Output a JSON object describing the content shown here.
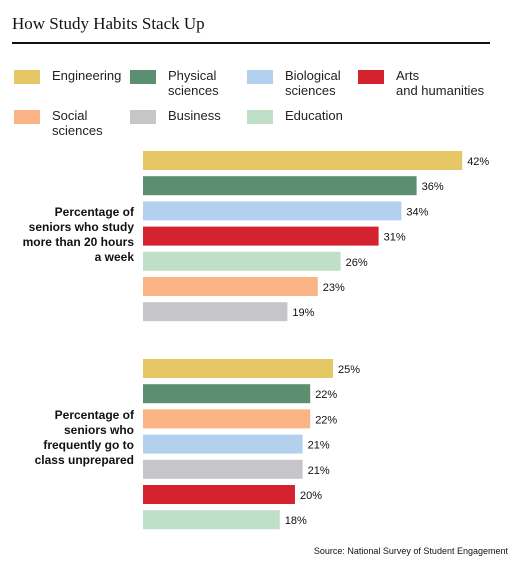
{
  "header": {
    "title": "How Study Habits Stack Up"
  },
  "colors": {
    "Engineering": "#e6c765",
    "Physical sciences": "#5c8f6f",
    "Biological sciences": "#b3d0ee",
    "Arts and humanities": "#d4232e",
    "Social sciences": "#fab384",
    "Business": "#c6c6c8",
    "Education": "#bfdfc6"
  },
  "legend": [
    {
      "name": "Engineering",
      "label": "Engineering"
    },
    {
      "name": "Physical sciences",
      "label": "Physical\nsciences"
    },
    {
      "name": "Biological sciences",
      "label": "Biological\nsciences"
    },
    {
      "name": "Arts and humanities",
      "label": "Arts\nand humanities"
    },
    {
      "name": "Social sciences",
      "label": "Social\nsciences"
    },
    {
      "name": "Business",
      "label": "Business"
    },
    {
      "name": "Education",
      "label": "Education"
    }
  ],
  "chart_data": [
    {
      "type": "bar",
      "orientation": "horizontal",
      "group_label": "Percentage of seniors who study more than 20 hours a week",
      "categories": [
        "Engineering",
        "Physical sciences",
        "Biological sciences",
        "Arts and humanities",
        "Education",
        "Social sciences",
        "Business"
      ],
      "values": [
        42,
        36,
        34,
        31,
        26,
        23,
        19
      ],
      "value_labels": [
        "42%",
        "36%",
        "34%",
        "31%",
        "26%",
        "23%",
        "19%"
      ]
    },
    {
      "type": "bar",
      "orientation": "horizontal",
      "group_label": "Percentage of seniors who frequently go to class unprepared",
      "categories": [
        "Engineering",
        "Physical sciences",
        "Social sciences",
        "Biological sciences",
        "Business",
        "Arts and humanities",
        "Education"
      ],
      "values": [
        25,
        22,
        22,
        21,
        21,
        20,
        18
      ],
      "value_labels": [
        "25%",
        "22%",
        "22%",
        "21%",
        "21%",
        "20%",
        "18%"
      ]
    }
  ],
  "footer": {
    "source": "Source: National Survey of Student Engagement"
  }
}
